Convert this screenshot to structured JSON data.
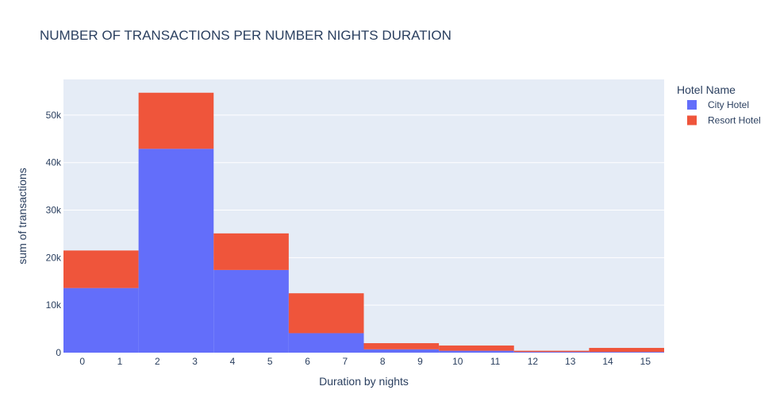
{
  "chart_data": {
    "type": "bar",
    "title": "NUMBER OF TRANSACTIONS PER NUMBER NIGHTS DURATION",
    "xlabel": "Duration by nights",
    "ylabel": "sum of transactions",
    "x_ticks": [
      "0",
      "1",
      "2",
      "3",
      "4",
      "5",
      "6",
      "7",
      "8",
      "9",
      "10",
      "11",
      "12",
      "13",
      "14",
      "15"
    ],
    "y_ticks": [
      {
        "value": 0,
        "label": "0"
      },
      {
        "value": 10000,
        "label": "10k"
      },
      {
        "value": 20000,
        "label": "20k"
      },
      {
        "value": 30000,
        "label": "30k"
      },
      {
        "value": 40000,
        "label": "40k"
      },
      {
        "value": 50000,
        "label": "50k"
      }
    ],
    "ylim": [
      0,
      57500
    ],
    "xlim": [
      -0.5,
      15.5
    ],
    "bin_width": 2,
    "bins": [
      {
        "start": -0.5,
        "end": 1.5
      },
      {
        "start": 1.5,
        "end": 3.5
      },
      {
        "start": 3.5,
        "end": 5.5
      },
      {
        "start": 5.5,
        "end": 7.5
      },
      {
        "start": 7.5,
        "end": 9.5
      },
      {
        "start": 9.5,
        "end": 11.5
      },
      {
        "start": 11.5,
        "end": 13.5
      },
      {
        "start": 13.5,
        "end": 15.5
      }
    ],
    "stacked": true,
    "legend_title": "Hotel Name",
    "legend_position": "top-right",
    "grid": true,
    "series": [
      {
        "name": "City Hotel",
        "color": "#636efa",
        "values": [
          13600,
          42900,
          17400,
          4100,
          700,
          400,
          150,
          150
        ]
      },
      {
        "name": "Resort Hotel",
        "color": "#ef553b",
        "values": [
          7900,
          11800,
          7700,
          8400,
          1300,
          1100,
          250,
          850
        ]
      }
    ]
  }
}
